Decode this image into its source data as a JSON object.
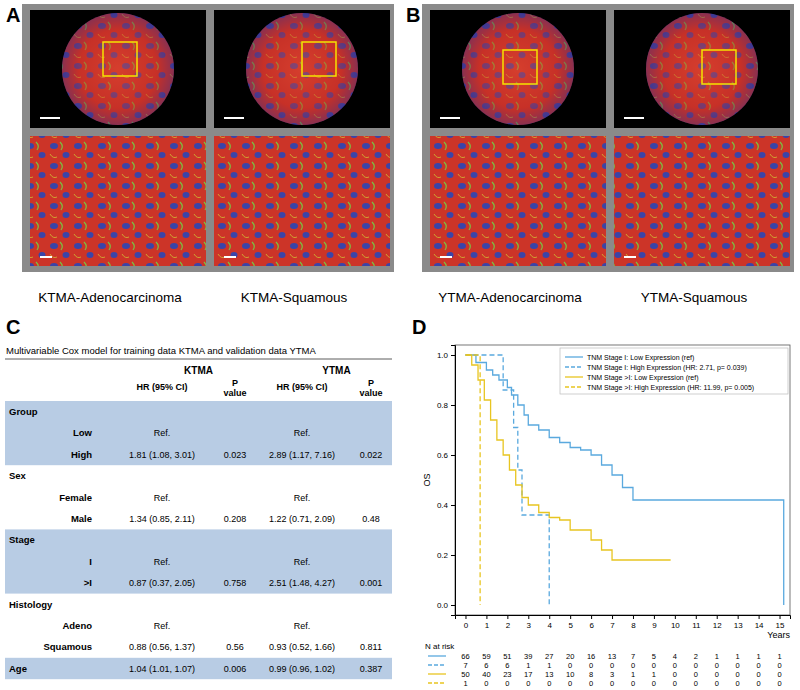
{
  "panels": {
    "labels": [
      "A",
      "B",
      "C",
      "D"
    ]
  },
  "images": [
    {
      "caption": "KTMA-Adenocarcinoma"
    },
    {
      "caption": "KTMA-Squamous"
    },
    {
      "caption": "YTMA-Adenocarcinoma"
    },
    {
      "caption": "YTMA-Squamous"
    }
  ],
  "table": {
    "title": "Multivariable Cox model for training data KTMA and validation data YTMA",
    "columns": [
      {
        "label": "KTMA",
        "sub": [
          "HR (95% CI)",
          "P value"
        ]
      },
      {
        "label": "YTMA",
        "sub": [
          "HR (95% CI)",
          "P value"
        ]
      }
    ],
    "groups": [
      {
        "label": "Group",
        "shaded": true,
        "rows": [
          {
            "label": "Low",
            "cells": [
              "Ref.",
              null,
              "Ref.",
              null
            ]
          },
          {
            "label": "High",
            "cells": [
              "1.81 (1.08, 3.01)",
              "0.023",
              "2.89 (1.17, 7.16)",
              "0.022"
            ]
          }
        ]
      },
      {
        "label": "Sex",
        "shaded": false,
        "rows": [
          {
            "label": "Female",
            "cells": [
              "Ref.",
              null,
              "Ref.",
              null
            ]
          },
          {
            "label": "Male",
            "cells": [
              "1.34 (0.85, 2.11)",
              "0.208",
              "1.22 (0.71, 2.09)",
              "0.48"
            ]
          }
        ]
      },
      {
        "label": "Stage",
        "shaded": true,
        "rows": [
          {
            "label": "I",
            "cells": [
              "Ref.",
              null,
              "Ref.",
              null
            ]
          },
          {
            "label": ">I",
            "cells": [
              "0.87 (0.37, 2.05)",
              "0.758",
              "2.51 (1.48, 4.27)",
              "0.001"
            ]
          }
        ]
      },
      {
        "label": "Histology",
        "shaded": false,
        "rows": [
          {
            "label": "Adeno",
            "cells": [
              "Ref.",
              null,
              "Ref.",
              null
            ]
          },
          {
            "label": "Squamous",
            "cells": [
              "0.88 (0.56, 1.37)",
              "0.56",
              "0.93 (0.52, 1.66)",
              "0.811"
            ]
          }
        ]
      },
      {
        "label": "Age",
        "shaded": true,
        "cells": [
          "1.04 (1.01, 1.07)",
          "0.006",
          "0.99 (0.96, 1.02)",
          "0.387"
        ]
      }
    ]
  },
  "chart_data": {
    "type": "step",
    "x_label": "Years",
    "y_label": "OS",
    "xlim": [
      -0.5,
      15.5
    ],
    "ylim": [
      -0.04,
      1.04
    ],
    "xticks": [
      0,
      1,
      2,
      3,
      4,
      5,
      6,
      7,
      8,
      9,
      10,
      11,
      12,
      13,
      14,
      15
    ],
    "yticks": [
      {
        "value": 0,
        "label": "0.0"
      },
      {
        "value": 0.2,
        "label": "0.2"
      },
      {
        "value": 0.4,
        "label": "0.4"
      },
      {
        "value": 0.6,
        "label": "0.6"
      },
      {
        "value": 0.8,
        "label": "0.8"
      },
      {
        "value": 1,
        "label": "1.0"
      }
    ],
    "grid": false,
    "legend": "top-right",
    "at_risk_label": "N at risk",
    "series": [
      {
        "name": "TNM Stage I: Low Expression (ref)",
        "color": "#5aa9de",
        "line_style": "solid",
        "x": [
          0,
          0.5,
          1,
          1.3,
          1.6,
          2,
          2.2,
          2.5,
          2.8,
          3,
          3.5,
          4,
          4.5,
          5,
          5.5,
          6,
          6.5,
          7,
          7.5,
          8,
          15.2
        ],
        "values": [
          1,
          0.97,
          0.94,
          0.92,
          0.9,
          0.87,
          0.84,
          0.8,
          0.76,
          0.72,
          0.7,
          0.67,
          0.65,
          0.63,
          0.62,
          0.6,
          0.56,
          0.52,
          0.47,
          0.42,
          0
        ],
        "at_risk": [
          66,
          59,
          51,
          39,
          27,
          20,
          16,
          13,
          7,
          5,
          4,
          2,
          1,
          1,
          1,
          1
        ]
      },
      {
        "name": "TNM Stage I: High Expression (HR: 2.71, p= 0.039)",
        "color": "#5aa9de",
        "line_style": "dashed",
        "x": [
          0,
          1.8,
          2.3,
          2.5,
          2.7,
          4.0
        ],
        "values": [
          1,
          0.86,
          0.71,
          0.54,
          0.36,
          0
        ],
        "at_risk": [
          7,
          6,
          6,
          1,
          1,
          0,
          0,
          0,
          0,
          0,
          0,
          0,
          0,
          0,
          0,
          0
        ]
      },
      {
        "name": "TNM Stage >I: Low Expression (ref)",
        "color": "#e8c521",
        "line_style": "solid",
        "x": [
          0,
          0.3,
          0.6,
          0.9,
          1.2,
          1.5,
          1.8,
          2.1,
          2.4,
          2.7,
          3,
          3.5,
          4,
          4.5,
          5,
          6,
          6.5,
          7,
          9.8
        ],
        "values": [
          1,
          0.96,
          0.9,
          0.82,
          0.74,
          0.66,
          0.6,
          0.54,
          0.48,
          0.43,
          0.4,
          0.37,
          0.35,
          0.34,
          0.3,
          0.26,
          0.22,
          0.18,
          0.18
        ],
        "at_risk": [
          50,
          40,
          23,
          17,
          13,
          10,
          8,
          3,
          1,
          1,
          0,
          0,
          0,
          0,
          0,
          0
        ]
      },
      {
        "name": "TNM Stage >I: High Expression (HR: 11.99, p= 0.005)",
        "color": "#e8c521",
        "line_style": "dashed",
        "x": [
          0,
          0.7
        ],
        "values": [
          1,
          0
        ],
        "at_risk": [
          1,
          0,
          0,
          0,
          0,
          0,
          0,
          0,
          0,
          0,
          0,
          0,
          0,
          0,
          0,
          0
        ]
      }
    ]
  }
}
